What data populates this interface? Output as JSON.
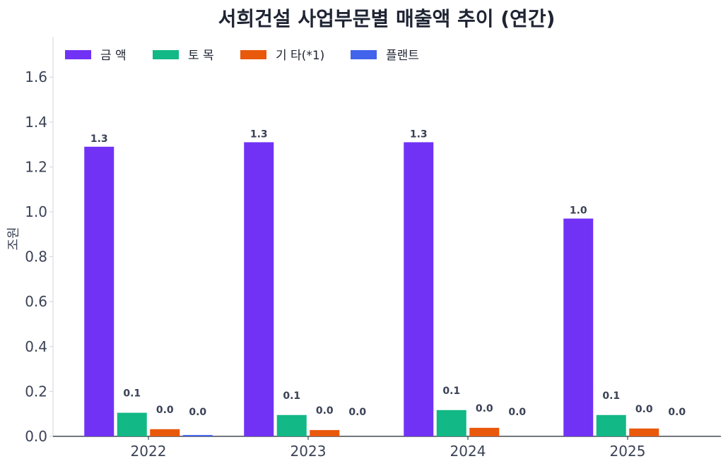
{
  "chart_data": {
    "type": "bar",
    "title": "서희건설 사업부문별 매출액 추이 (연간)",
    "xlabel": "",
    "ylabel": "조원",
    "categories": [
      "2022",
      "2023",
      "2024",
      "2025"
    ],
    "ylim": [
      0,
      1.78
    ],
    "yticks": [
      0.0,
      0.2,
      0.4,
      0.6,
      0.8,
      1.0,
      1.2,
      1.4,
      1.6
    ],
    "ytick_labels": [
      "0.0",
      "0.2",
      "0.4",
      "0.6",
      "0.8",
      "1.0",
      "1.2",
      "1.4",
      "1.6"
    ],
    "grid": false,
    "legend_position": "top-left",
    "series": [
      {
        "name": "금 액",
        "color": "#7132f5",
        "values": [
          1.29,
          1.31,
          1.31,
          0.97
        ],
        "labels": [
          "1.3",
          "1.3",
          "1.3",
          "1.0"
        ]
      },
      {
        "name": "토 목",
        "color": "#12b886",
        "values": [
          0.105,
          0.095,
          0.117,
          0.095
        ],
        "labels": [
          "0.1",
          "0.1",
          "0.1",
          "0.1"
        ]
      },
      {
        "name": "기 타(*1)",
        "color": "#e8590c",
        "values": [
          0.032,
          0.028,
          0.038,
          0.035
        ],
        "labels": [
          "0.0",
          "0.0",
          "0.0",
          "0.0"
        ]
      },
      {
        "name": "플랜트",
        "color": "#4263eb",
        "values": [
          0.006,
          0.0,
          0.0,
          0.0
        ],
        "labels": [
          "0.0",
          "0.0",
          "0.0",
          "0.0"
        ]
      }
    ]
  }
}
